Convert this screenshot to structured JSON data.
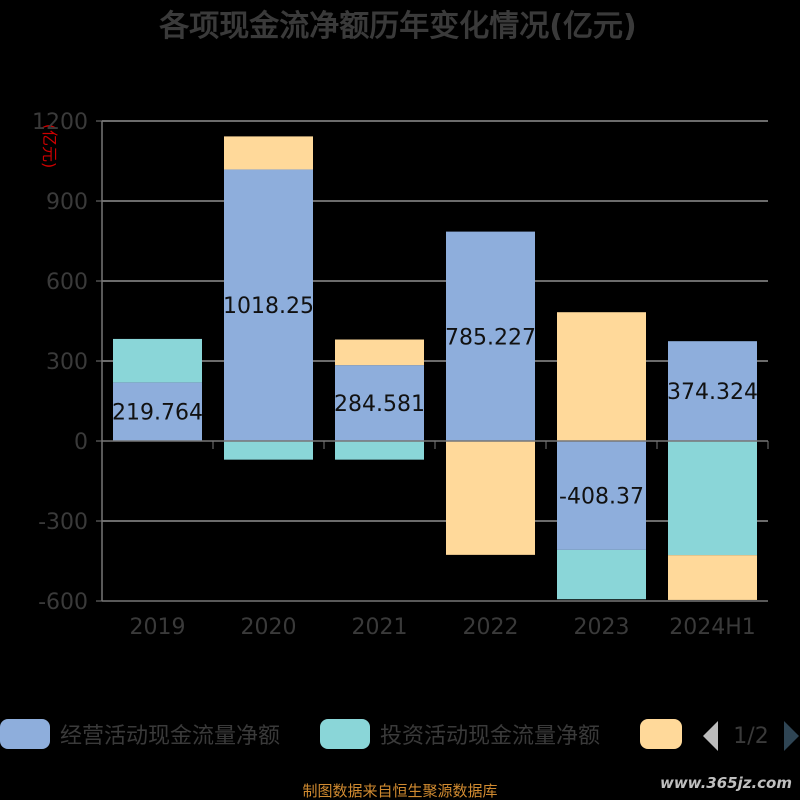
{
  "chart_data": {
    "type": "bar",
    "stacked": true,
    "title": "各项现金流净额历年变化情况(亿元)",
    "ylabel": "(亿元)",
    "ylim": [
      -600,
      1200
    ],
    "yticks": [
      -600,
      -300,
      0,
      300,
      600,
      900,
      1200
    ],
    "categories": [
      "2019",
      "2020",
      "2021",
      "2022",
      "2023",
      "2024H1"
    ],
    "grid": true,
    "series": [
      {
        "name": "经营活动现金流量净额",
        "color": "#8eaedc",
        "values": [
          219.764,
          1018.25,
          284.581,
          785.227,
          -408.37,
          374.324
        ]
      },
      {
        "name": "投资活动现金流量净额",
        "color": "#8ad6d8",
        "values": [
          163,
          -70,
          -70,
          0,
          -185,
          -428
        ]
      },
      {
        "name": "",
        "color": "#ffd99a",
        "values": [
          0,
          124,
          96,
          -427,
          483,
          -168
        ]
      }
    ],
    "data_labels": [
      "219.764",
      "1018.25",
      "284.581",
      "785.227",
      "-408.37",
      "374.324"
    ],
    "legend": {
      "placement": "bottom",
      "page": "1/2"
    }
  },
  "source": "制图数据来自恒生聚源数据库",
  "watermark": "www.365jz.com"
}
